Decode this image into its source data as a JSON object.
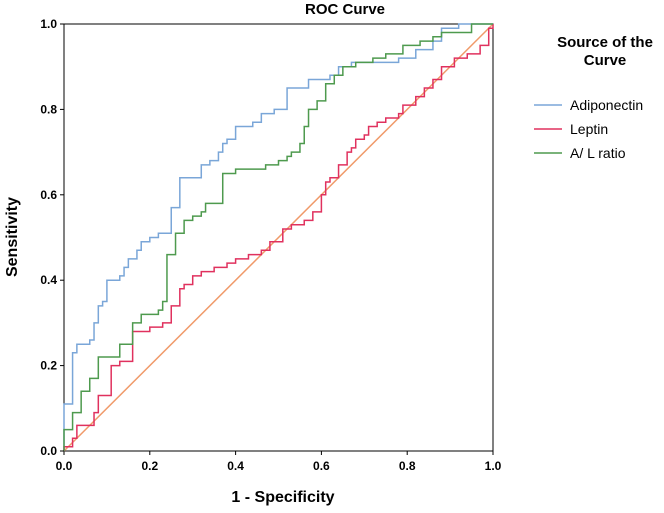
{
  "chart_data": {
    "type": "line",
    "title": "ROC Curve",
    "xlabel": "1 - Specificity",
    "ylabel": "Sensitivity",
    "xlim": [
      0.0,
      1.0
    ],
    "ylim": [
      0.0,
      1.0
    ],
    "xticks": [
      "0.0",
      "0.2",
      "0.4",
      "0.6",
      "0.8",
      "1.0"
    ],
    "yticks": [
      "0.0",
      "0.2",
      "0.4",
      "0.6",
      "0.8",
      "1.0"
    ],
    "grid": false,
    "legend": {
      "title_line1": "Source of the",
      "title_line2": "Curve",
      "placement": "right"
    },
    "series": [
      {
        "name": "Adiponectin",
        "color": "#7aa6d8",
        "step": true,
        "points": [
          [
            0,
            0
          ],
          [
            0,
            0.11
          ],
          [
            0.02,
            0.11
          ],
          [
            0.02,
            0.23
          ],
          [
            0.03,
            0.23
          ],
          [
            0.03,
            0.25
          ],
          [
            0.06,
            0.25
          ],
          [
            0.06,
            0.26
          ],
          [
            0.07,
            0.26
          ],
          [
            0.07,
            0.3
          ],
          [
            0.08,
            0.3
          ],
          [
            0.08,
            0.34
          ],
          [
            0.09,
            0.34
          ],
          [
            0.09,
            0.35
          ],
          [
            0.1,
            0.35
          ],
          [
            0.1,
            0.4
          ],
          [
            0.13,
            0.4
          ],
          [
            0.13,
            0.41
          ],
          [
            0.14,
            0.41
          ],
          [
            0.14,
            0.43
          ],
          [
            0.15,
            0.43
          ],
          [
            0.15,
            0.45
          ],
          [
            0.17,
            0.45
          ],
          [
            0.17,
            0.47
          ],
          [
            0.18,
            0.47
          ],
          [
            0.18,
            0.49
          ],
          [
            0.2,
            0.49
          ],
          [
            0.2,
            0.5
          ],
          [
            0.22,
            0.5
          ],
          [
            0.22,
            0.51
          ],
          [
            0.25,
            0.51
          ],
          [
            0.25,
            0.57
          ],
          [
            0.27,
            0.57
          ],
          [
            0.27,
            0.64
          ],
          [
            0.32,
            0.64
          ],
          [
            0.32,
            0.67
          ],
          [
            0.34,
            0.67
          ],
          [
            0.34,
            0.68
          ],
          [
            0.36,
            0.68
          ],
          [
            0.36,
            0.7
          ],
          [
            0.37,
            0.7
          ],
          [
            0.37,
            0.72
          ],
          [
            0.38,
            0.72
          ],
          [
            0.38,
            0.73
          ],
          [
            0.4,
            0.73
          ],
          [
            0.4,
            0.76
          ],
          [
            0.44,
            0.76
          ],
          [
            0.44,
            0.77
          ],
          [
            0.46,
            0.77
          ],
          [
            0.46,
            0.79
          ],
          [
            0.49,
            0.79
          ],
          [
            0.49,
            0.8
          ],
          [
            0.52,
            0.8
          ],
          [
            0.52,
            0.85
          ],
          [
            0.57,
            0.85
          ],
          [
            0.57,
            0.87
          ],
          [
            0.62,
            0.87
          ],
          [
            0.62,
            0.88
          ],
          [
            0.64,
            0.88
          ],
          [
            0.64,
            0.9
          ],
          [
            0.67,
            0.9
          ],
          [
            0.67,
            0.91
          ],
          [
            0.78,
            0.91
          ],
          [
            0.78,
            0.92
          ],
          [
            0.82,
            0.92
          ],
          [
            0.82,
            0.94
          ],
          [
            0.86,
            0.94
          ],
          [
            0.86,
            0.96
          ],
          [
            0.88,
            0.96
          ],
          [
            0.88,
            0.99
          ],
          [
            0.92,
            0.99
          ],
          [
            0.92,
            1.0
          ],
          [
            1.0,
            1.0
          ]
        ]
      },
      {
        "name": "Leptin",
        "color": "#e0315e",
        "step": true,
        "points": [
          [
            0,
            0
          ],
          [
            0,
            0.01
          ],
          [
            0.02,
            0.01
          ],
          [
            0.02,
            0.03
          ],
          [
            0.03,
            0.03
          ],
          [
            0.03,
            0.06
          ],
          [
            0.07,
            0.06
          ],
          [
            0.07,
            0.09
          ],
          [
            0.08,
            0.09
          ],
          [
            0.08,
            0.13
          ],
          [
            0.11,
            0.13
          ],
          [
            0.11,
            0.2
          ],
          [
            0.13,
            0.2
          ],
          [
            0.13,
            0.21
          ],
          [
            0.16,
            0.21
          ],
          [
            0.16,
            0.28
          ],
          [
            0.2,
            0.28
          ],
          [
            0.2,
            0.29
          ],
          [
            0.23,
            0.29
          ],
          [
            0.23,
            0.3
          ],
          [
            0.25,
            0.3
          ],
          [
            0.25,
            0.34
          ],
          [
            0.27,
            0.34
          ],
          [
            0.27,
            0.38
          ],
          [
            0.28,
            0.38
          ],
          [
            0.28,
            0.39
          ],
          [
            0.3,
            0.39
          ],
          [
            0.3,
            0.41
          ],
          [
            0.32,
            0.41
          ],
          [
            0.32,
            0.42
          ],
          [
            0.35,
            0.42
          ],
          [
            0.35,
            0.43
          ],
          [
            0.38,
            0.43
          ],
          [
            0.38,
            0.44
          ],
          [
            0.4,
            0.44
          ],
          [
            0.4,
            0.45
          ],
          [
            0.43,
            0.45
          ],
          [
            0.43,
            0.46
          ],
          [
            0.46,
            0.46
          ],
          [
            0.46,
            0.47
          ],
          [
            0.48,
            0.47
          ],
          [
            0.48,
            0.49
          ],
          [
            0.51,
            0.49
          ],
          [
            0.51,
            0.52
          ],
          [
            0.53,
            0.52
          ],
          [
            0.53,
            0.53
          ],
          [
            0.56,
            0.53
          ],
          [
            0.56,
            0.54
          ],
          [
            0.58,
            0.54
          ],
          [
            0.58,
            0.56
          ],
          [
            0.6,
            0.56
          ],
          [
            0.6,
            0.6
          ],
          [
            0.61,
            0.6
          ],
          [
            0.61,
            0.63
          ],
          [
            0.62,
            0.63
          ],
          [
            0.62,
            0.64
          ],
          [
            0.64,
            0.64
          ],
          [
            0.64,
            0.67
          ],
          [
            0.66,
            0.67
          ],
          [
            0.66,
            0.7
          ],
          [
            0.67,
            0.7
          ],
          [
            0.67,
            0.71
          ],
          [
            0.68,
            0.71
          ],
          [
            0.68,
            0.73
          ],
          [
            0.7,
            0.73
          ],
          [
            0.7,
            0.74
          ],
          [
            0.71,
            0.74
          ],
          [
            0.71,
            0.76
          ],
          [
            0.73,
            0.76
          ],
          [
            0.73,
            0.77
          ],
          [
            0.75,
            0.77
          ],
          [
            0.75,
            0.78
          ],
          [
            0.78,
            0.78
          ],
          [
            0.78,
            0.79
          ],
          [
            0.79,
            0.79
          ],
          [
            0.79,
            0.81
          ],
          [
            0.82,
            0.81
          ],
          [
            0.82,
            0.83
          ],
          [
            0.84,
            0.83
          ],
          [
            0.84,
            0.85
          ],
          [
            0.86,
            0.85
          ],
          [
            0.86,
            0.87
          ],
          [
            0.88,
            0.87
          ],
          [
            0.88,
            0.9
          ],
          [
            0.91,
            0.9
          ],
          [
            0.91,
            0.92
          ],
          [
            0.94,
            0.92
          ],
          [
            0.94,
            0.93
          ],
          [
            0.97,
            0.93
          ],
          [
            0.97,
            0.95
          ],
          [
            0.99,
            0.95
          ],
          [
            0.99,
            0.99
          ],
          [
            1.0,
            0.99
          ],
          [
            1.0,
            1.0
          ]
        ]
      },
      {
        "name": "A/ L ratio",
        "color": "#4e9a4e",
        "step": true,
        "points": [
          [
            0,
            0
          ],
          [
            0,
            0.05
          ],
          [
            0.02,
            0.05
          ],
          [
            0.02,
            0.09
          ],
          [
            0.04,
            0.09
          ],
          [
            0.04,
            0.14
          ],
          [
            0.06,
            0.14
          ],
          [
            0.06,
            0.17
          ],
          [
            0.08,
            0.17
          ],
          [
            0.08,
            0.22
          ],
          [
            0.13,
            0.22
          ],
          [
            0.13,
            0.25
          ],
          [
            0.16,
            0.25
          ],
          [
            0.16,
            0.3
          ],
          [
            0.18,
            0.3
          ],
          [
            0.18,
            0.32
          ],
          [
            0.22,
            0.32
          ],
          [
            0.22,
            0.33
          ],
          [
            0.23,
            0.33
          ],
          [
            0.23,
            0.35
          ],
          [
            0.24,
            0.35
          ],
          [
            0.24,
            0.46
          ],
          [
            0.26,
            0.46
          ],
          [
            0.26,
            0.51
          ],
          [
            0.28,
            0.51
          ],
          [
            0.28,
            0.54
          ],
          [
            0.3,
            0.54
          ],
          [
            0.3,
            0.55
          ],
          [
            0.32,
            0.55
          ],
          [
            0.32,
            0.56
          ],
          [
            0.33,
            0.56
          ],
          [
            0.33,
            0.58
          ],
          [
            0.37,
            0.58
          ],
          [
            0.37,
            0.65
          ],
          [
            0.4,
            0.65
          ],
          [
            0.4,
            0.66
          ],
          [
            0.47,
            0.66
          ],
          [
            0.47,
            0.67
          ],
          [
            0.5,
            0.67
          ],
          [
            0.5,
            0.68
          ],
          [
            0.52,
            0.68
          ],
          [
            0.52,
            0.69
          ],
          [
            0.53,
            0.69
          ],
          [
            0.53,
            0.7
          ],
          [
            0.55,
            0.7
          ],
          [
            0.55,
            0.72
          ],
          [
            0.56,
            0.72
          ],
          [
            0.56,
            0.76
          ],
          [
            0.57,
            0.76
          ],
          [
            0.57,
            0.8
          ],
          [
            0.59,
            0.8
          ],
          [
            0.59,
            0.82
          ],
          [
            0.61,
            0.82
          ],
          [
            0.61,
            0.86
          ],
          [
            0.63,
            0.86
          ],
          [
            0.63,
            0.88
          ],
          [
            0.65,
            0.88
          ],
          [
            0.65,
            0.9
          ],
          [
            0.68,
            0.9
          ],
          [
            0.68,
            0.91
          ],
          [
            0.72,
            0.91
          ],
          [
            0.72,
            0.92
          ],
          [
            0.75,
            0.92
          ],
          [
            0.75,
            0.93
          ],
          [
            0.79,
            0.93
          ],
          [
            0.79,
            0.95
          ],
          [
            0.83,
            0.95
          ],
          [
            0.83,
            0.96
          ],
          [
            0.86,
            0.96
          ],
          [
            0.86,
            0.97
          ],
          [
            0.88,
            0.97
          ],
          [
            0.88,
            0.98
          ],
          [
            0.95,
            0.98
          ],
          [
            0.95,
            1.0
          ],
          [
            1.0,
            1.0
          ]
        ]
      },
      {
        "name": "Reference Line",
        "color": "#f09a6a",
        "step": false,
        "in_legend": false,
        "points": [
          [
            0,
            0
          ],
          [
            1,
            1
          ]
        ]
      }
    ]
  }
}
